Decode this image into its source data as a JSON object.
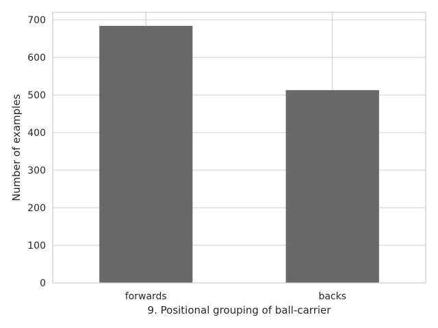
{
  "chart_data": {
    "type": "bar",
    "categories": [
      "forwards",
      "backs"
    ],
    "values": [
      684,
      513
    ],
    "title": "",
    "xlabel": "9. Positional grouping of ball-carrier",
    "ylabel": "Number of examples",
    "ylim": [
      0,
      720
    ],
    "yticks": [
      0,
      100,
      200,
      300,
      400,
      500,
      600,
      700
    ],
    "grid": true,
    "legend": "none",
    "bar_color": "#696969",
    "grid_color": "#cccccc"
  }
}
